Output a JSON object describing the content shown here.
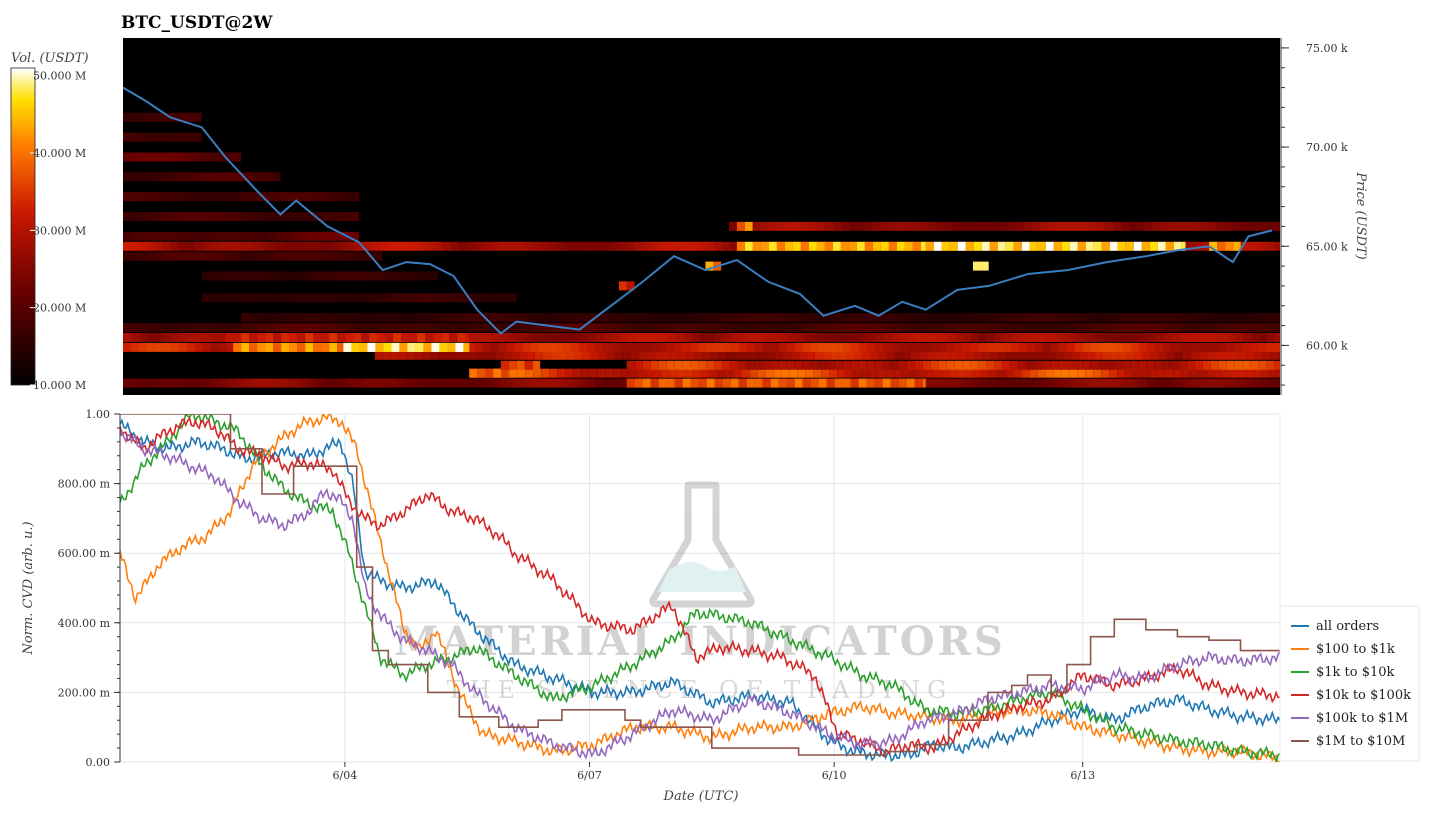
{
  "chart_data": [
    {
      "type": "heatmap",
      "title": "BTC_USDT@2W",
      "ylabel": "Price (USDT)",
      "colorbar": {
        "label": "Vol. (USDT)",
        "range": [
          10000000,
          51000000
        ],
        "tick_values": [
          10000000,
          20000000,
          30000000,
          40000000,
          50000000
        ],
        "tick_labels": [
          "10.000 M",
          "20.000 M",
          "30.000 M",
          "40.000 M",
          "50.000 M"
        ]
      },
      "x_range_days": [
        0,
        14.7
      ],
      "ylim": [
        57500,
        75500
      ],
      "ytick_values": [
        60000,
        65000,
        70000,
        75000
      ],
      "ytick_labels": [
        "60.00 k",
        "65.00 k",
        "70.00 k",
        "75.00 k"
      ],
      "price_line_color": "#3a7dc0",
      "price": {
        "day": [
          0,
          0.3,
          0.6,
          1.0,
          1.3,
          1.7,
          2.0,
          2.2,
          2.6,
          3.0,
          3.3,
          3.6,
          3.9,
          4.2,
          4.5,
          4.8,
          5.0,
          5.4,
          5.8,
          6.2,
          6.6,
          7.0,
          7.4,
          7.8,
          8.2,
          8.6,
          8.9,
          9.3,
          9.6,
          9.9,
          10.2,
          10.6,
          11.0,
          11.5,
          12.0,
          12.5,
          13.0,
          13.4,
          13.8,
          14.1,
          14.3,
          14.6
        ],
        "value": [
          73000,
          72300,
          71500,
          71000,
          69500,
          67800,
          66600,
          67300,
          66000,
          65200,
          63800,
          64200,
          64100,
          63500,
          61800,
          60600,
          61200,
          61000,
          60800,
          62000,
          63200,
          64500,
          63800,
          64300,
          63200,
          62600,
          61500,
          62000,
          61500,
          62200,
          61800,
          62800,
          63000,
          63600,
          63800,
          64200,
          64500,
          64800,
          65000,
          64200,
          65500,
          65800
        ]
      },
      "bands": [
        {
          "price": 58100,
          "from": 0,
          "to": 14.7,
          "level": 0.35
        },
        {
          "price": 58600,
          "from": 4.4,
          "to": 14.7,
          "level": 0.6
        },
        {
          "price": 59000,
          "from": 6.4,
          "to": 14.7,
          "level": 0.55
        },
        {
          "price": 59500,
          "from": 3.2,
          "to": 14.7,
          "level": 0.5
        },
        {
          "price": 59900,
          "from": 0,
          "to": 14.7,
          "level": 0.55
        },
        {
          "price": 60400,
          "from": 0,
          "to": 14.7,
          "level": 0.45
        },
        {
          "price": 60900,
          "from": 0,
          "to": 14.7,
          "level": 0.2
        },
        {
          "price": 61400,
          "from": 1.5,
          "to": 14.7,
          "level": 0.15
        },
        {
          "price": 62400,
          "from": 1.0,
          "to": 5.0,
          "level": 0.15
        },
        {
          "price": 63500,
          "from": 1.0,
          "to": 4.0,
          "level": 0.15
        },
        {
          "price": 64500,
          "from": 0,
          "to": 3.3,
          "level": 0.2
        },
        {
          "price": 65000,
          "from": 0,
          "to": 14.7,
          "level": 0.45
        },
        {
          "price": 65500,
          "from": 0,
          "to": 3.0,
          "level": 0.25
        },
        {
          "price": 66000,
          "from": 7.7,
          "to": 14.7,
          "level": 0.4
        },
        {
          "price": 66500,
          "from": 0,
          "to": 3.0,
          "level": 0.2
        },
        {
          "price": 67500,
          "from": 0,
          "to": 3.0,
          "level": 0.2
        },
        {
          "price": 68500,
          "from": 0,
          "to": 2.0,
          "level": 0.2
        },
        {
          "price": 69500,
          "from": 0,
          "to": 1.5,
          "level": 0.25
        },
        {
          "price": 70500,
          "from": 0,
          "to": 1.0,
          "level": 0.2
        },
        {
          "price": 71500,
          "from": 0,
          "to": 1.0,
          "level": 0.2
        }
      ],
      "hotspots": [
        {
          "price": 59900,
          "from": 1.4,
          "to": 4.4,
          "level": 0.85
        },
        {
          "price": 59900,
          "from": 2.8,
          "to": 4.4,
          "level": 1.0
        },
        {
          "price": 60400,
          "from": 1.3,
          "to": 4.4,
          "level": 0.6
        },
        {
          "price": 58600,
          "from": 4.4,
          "to": 4.9,
          "level": 0.75
        },
        {
          "price": 58100,
          "from": 6.4,
          "to": 10.2,
          "level": 0.75
        },
        {
          "price": 59000,
          "from": 4.8,
          "to": 5.3,
          "level": 0.7
        },
        {
          "price": 65000,
          "from": 7.8,
          "to": 10.2,
          "level": 0.92
        },
        {
          "price": 65000,
          "from": 10.2,
          "to": 13.5,
          "level": 1.0
        },
        {
          "price": 65000,
          "from": 13.8,
          "to": 14.2,
          "level": 0.85
        },
        {
          "price": 66000,
          "from": 7.8,
          "to": 8.0,
          "level": 0.8
        },
        {
          "price": 64000,
          "from": 7.4,
          "to": 7.6,
          "level": 0.85
        },
        {
          "price": 63000,
          "from": 6.3,
          "to": 6.5,
          "level": 0.6
        },
        {
          "price": 64000,
          "from": 10.8,
          "to": 11.0,
          "level": 1.0
        }
      ]
    },
    {
      "type": "line",
      "xlabel": "Date (UTC)",
      "ylabel": "Norm. CVD (arb. u.)",
      "ylim": [
        0,
        1
      ],
      "ytick_values": [
        0,
        0.2,
        0.4,
        0.6,
        0.8,
        1.0
      ],
      "ytick_labels": [
        "0.00",
        "200.00 m",
        "400.00 m",
        "600.00 m",
        "800.00 m",
        "1.00"
      ],
      "x_range_days": [
        0,
        14.7
      ],
      "xtick_values": [
        2.85,
        5.95,
        9.05,
        12.2
      ],
      "xtick_labels": [
        "6/04",
        "6/07",
        "6/10",
        "6/13"
      ],
      "grid": true,
      "legend_position": "right",
      "watermark": {
        "title": "MATERIAL INDICATORS",
        "subtitle": "THE SCIENCE OF TRADING"
      },
      "series": [
        {
          "name": "all orders",
          "color": "#1f77b4",
          "step": false,
          "day": [
            0,
            0.3,
            0.6,
            1.0,
            1.3,
            1.6,
            2.0,
            2.4,
            2.8,
            2.95,
            3.1,
            3.3,
            3.6,
            4.0,
            4.3,
            4.6,
            5.0,
            5.5,
            6.0,
            6.5,
            7.0,
            7.5,
            8.0,
            8.5,
            9.0,
            9.3,
            9.6,
            10.0,
            10.3,
            10.6,
            11.0,
            11.4,
            11.8,
            12.2,
            12.6,
            13.0,
            13.4,
            13.8,
            14.2,
            14.7
          ],
          "value": [
            0.97,
            0.92,
            0.9,
            0.92,
            0.9,
            0.87,
            0.89,
            0.88,
            0.92,
            0.8,
            0.55,
            0.52,
            0.5,
            0.52,
            0.43,
            0.36,
            0.28,
            0.24,
            0.2,
            0.2,
            0.23,
            0.17,
            0.19,
            0.17,
            0.06,
            0.03,
            0.02,
            0.02,
            0.05,
            0.04,
            0.06,
            0.08,
            0.12,
            0.15,
            0.12,
            0.16,
            0.18,
            0.15,
            0.13,
            0.12
          ]
        },
        {
          "name": "$100 to $1k",
          "color": "#ff7f0e",
          "step": false,
          "day": [
            0,
            0.2,
            0.5,
            0.8,
            1.1,
            1.4,
            1.7,
            2.0,
            2.3,
            2.6,
            2.8,
            3.0,
            3.2,
            3.4,
            3.6,
            3.8,
            4.0,
            4.3,
            4.6,
            5.0,
            5.5,
            6.0,
            6.5,
            7.0,
            7.5,
            8.0,
            8.5,
            9.0,
            9.4,
            9.8,
            10.2,
            10.6,
            11.0,
            11.4,
            11.8,
            12.2,
            12.6,
            13.0,
            13.4,
            13.8,
            14.2,
            14.7
          ],
          "value": [
            0.6,
            0.47,
            0.57,
            0.62,
            0.65,
            0.72,
            0.86,
            0.92,
            0.97,
            0.99,
            0.98,
            0.9,
            0.72,
            0.55,
            0.38,
            0.32,
            0.38,
            0.2,
            0.08,
            0.06,
            0.03,
            0.05,
            0.1,
            0.1,
            0.07,
            0.1,
            0.1,
            0.14,
            0.16,
            0.14,
            0.13,
            0.12,
            0.14,
            0.15,
            0.14,
            0.1,
            0.08,
            0.06,
            0.04,
            0.03,
            0.03,
            0.01
          ]
        },
        {
          "name": "$1k to $10k",
          "color": "#2ca02c",
          "step": false,
          "day": [
            0,
            0.3,
            0.6,
            0.9,
            1.2,
            1.5,
            1.8,
            2.1,
            2.4,
            2.7,
            2.9,
            3.1,
            3.3,
            3.6,
            3.9,
            4.2,
            4.5,
            5.0,
            5.5,
            6.0,
            6.5,
            7.0,
            7.3,
            7.6,
            8.0,
            8.5,
            9.0,
            9.4,
            9.8,
            10.2,
            10.6,
            11.0,
            11.4,
            11.8,
            12.2,
            12.6,
            13.0,
            13.4,
            13.8,
            14.2,
            14.7
          ],
          "value": [
            0.74,
            0.85,
            0.92,
            1.0,
            0.98,
            0.95,
            0.85,
            0.78,
            0.74,
            0.72,
            0.6,
            0.45,
            0.3,
            0.25,
            0.28,
            0.3,
            0.33,
            0.25,
            0.18,
            0.22,
            0.28,
            0.35,
            0.43,
            0.42,
            0.4,
            0.35,
            0.3,
            0.25,
            0.22,
            0.15,
            0.14,
            0.15,
            0.18,
            0.2,
            0.15,
            0.1,
            0.08,
            0.06,
            0.05,
            0.03,
            0.02
          ]
        },
        {
          "name": "$10k to $100k",
          "color": "#d62728",
          "step": false,
          "day": [
            0,
            0.3,
            0.6,
            0.9,
            1.2,
            1.5,
            1.8,
            2.1,
            2.4,
            2.7,
            2.9,
            3.1,
            3.3,
            3.6,
            3.9,
            4.2,
            4.5,
            4.8,
            5.0,
            5.5,
            6.0,
            6.5,
            7.0,
            7.3,
            7.6,
            8.0,
            8.4,
            8.8,
            9.1,
            9.4,
            9.7,
            10.0,
            10.3,
            10.6,
            11.0,
            11.4,
            11.8,
            12.2,
            12.6,
            13.0,
            13.4,
            13.8,
            14.2,
            14.7
          ],
          "value": [
            0.96,
            0.9,
            0.95,
            0.98,
            0.96,
            0.9,
            0.88,
            0.85,
            0.86,
            0.84,
            0.75,
            0.7,
            0.68,
            0.72,
            0.77,
            0.72,
            0.7,
            0.65,
            0.6,
            0.52,
            0.4,
            0.38,
            0.45,
            0.3,
            0.33,
            0.32,
            0.3,
            0.25,
            0.08,
            0.06,
            0.03,
            0.05,
            0.04,
            0.08,
            0.13,
            0.16,
            0.18,
            0.25,
            0.22,
            0.24,
            0.27,
            0.22,
            0.2,
            0.19
          ]
        },
        {
          "name": "$100k to $1M",
          "color": "#9467bd",
          "step": false,
          "day": [
            0,
            0.3,
            0.6,
            0.9,
            1.2,
            1.5,
            1.8,
            2.1,
            2.4,
            2.6,
            2.8,
            2.95,
            3.1,
            3.3,
            3.6,
            3.9,
            4.2,
            4.5,
            5.0,
            5.5,
            6.0,
            6.5,
            7.0,
            7.5,
            8.0,
            8.5,
            9.0,
            9.4,
            9.8,
            10.2,
            10.6,
            11.0,
            11.4,
            11.8,
            12.2,
            12.6,
            13.0,
            13.4,
            13.8,
            14.2,
            14.7
          ],
          "value": [
            0.95,
            0.9,
            0.88,
            0.85,
            0.82,
            0.75,
            0.7,
            0.68,
            0.72,
            0.78,
            0.75,
            0.7,
            0.5,
            0.42,
            0.35,
            0.32,
            0.28,
            0.2,
            0.1,
            0.05,
            0.02,
            0.08,
            0.15,
            0.12,
            0.18,
            0.14,
            0.08,
            0.05,
            0.06,
            0.12,
            0.14,
            0.18,
            0.2,
            0.22,
            0.21,
            0.25,
            0.24,
            0.28,
            0.3,
            0.29,
            0.3
          ]
        },
        {
          "name": "$1M to $10M",
          "color": "#8c564b",
          "step": true,
          "day": [
            0,
            1.0,
            1.4,
            1.8,
            2.2,
            2.6,
            3.0,
            3.2,
            3.4,
            3.6,
            3.9,
            4.3,
            4.5,
            4.8,
            5.0,
            5.3,
            5.6,
            6.0,
            6.4,
            6.6,
            7.0,
            7.5,
            7.8,
            8.2,
            8.6,
            9.0,
            9.4,
            9.7,
            10.1,
            10.5,
            11.0,
            11.3,
            11.5,
            11.8,
            12.0,
            12.3,
            12.6,
            13.0,
            13.4,
            13.8,
            14.2,
            14.7
          ],
          "value": [
            1.0,
            1.0,
            0.9,
            0.77,
            0.85,
            0.85,
            0.56,
            0.32,
            0.28,
            0.28,
            0.2,
            0.13,
            0.13,
            0.1,
            0.1,
            0.12,
            0.15,
            0.15,
            0.12,
            0.1,
            0.1,
            0.04,
            0.04,
            0.04,
            0.02,
            0.02,
            0.02,
            0.03,
            0.05,
            0.12,
            0.2,
            0.22,
            0.25,
            0.2,
            0.28,
            0.36,
            0.41,
            0.38,
            0.36,
            0.35,
            0.32,
            0.32
          ]
        }
      ]
    }
  ]
}
